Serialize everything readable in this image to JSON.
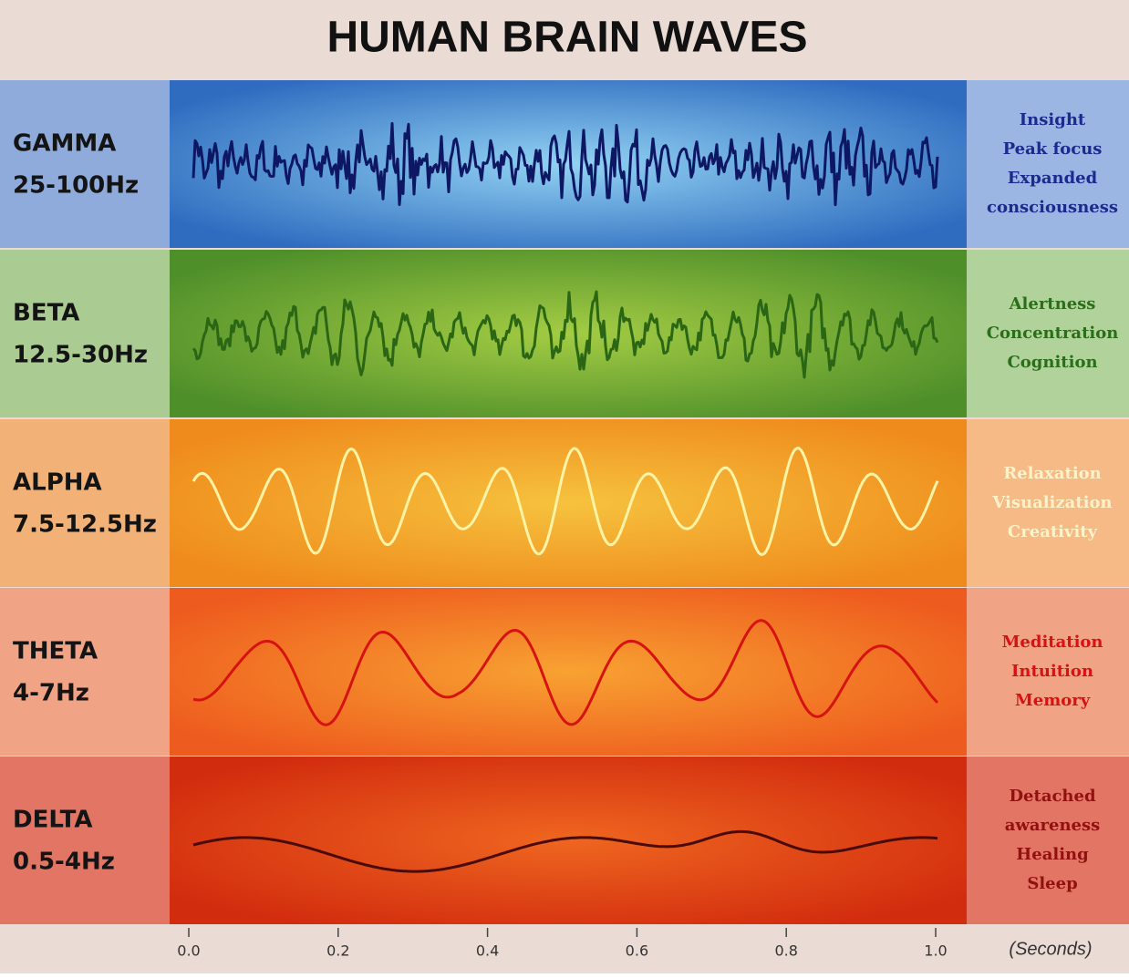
{
  "title": "HUMAN BRAIN WAVES",
  "bands": [
    {
      "name": "GAMMA",
      "range": "25-100Hz",
      "effects": [
        "Insight",
        "Peak focus",
        "Expanded",
        "consciousness"
      ]
    },
    {
      "name": "BETA",
      "range": "12.5-30Hz",
      "effects": [
        "Alertness",
        "Concentration",
        "Cognition"
      ]
    },
    {
      "name": "ALPHA",
      "range": "7.5-12.5Hz",
      "effects": [
        "Relaxation",
        "Visualization",
        "Creativity"
      ]
    },
    {
      "name": "THETA",
      "range": "4-7Hz",
      "effects": [
        "Meditation",
        "Intuition",
        "Memory"
      ]
    },
    {
      "name": "DELTA",
      "range": "0.5-4Hz",
      "effects": [
        "Detached",
        "awareness",
        "Healing",
        "Sleep"
      ]
    }
  ],
  "axis": {
    "xlim": [
      0,
      1
    ],
    "xticks": [
      {
        "value": 0,
        "label": "0.0"
      },
      0.2,
      0.4,
      0.6,
      0.8,
      {
        "value": 1,
        "label": "1.0"
      }
    ],
    "unit": "(Seconds)"
  }
}
